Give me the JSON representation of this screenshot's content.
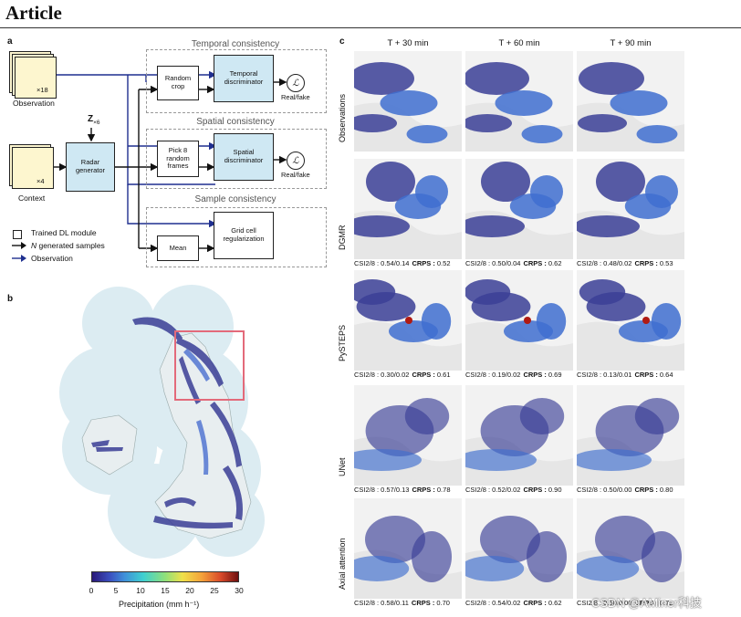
{
  "header": {
    "title": "Article"
  },
  "panel_a": {
    "letter": "a",
    "observation_label": "Observation",
    "observation_count": "×18",
    "context_label": "Context",
    "context_count": "×4",
    "z_label": "Z",
    "z_sub": "×6",
    "generator_label": "Radar generator",
    "temporal": {
      "title": "Temporal consistency",
      "crop_label": "Random crop",
      "disc_label": "Temporal discriminator",
      "loss_symbol": "ℒ",
      "output_label": "Real/fake"
    },
    "spatial": {
      "title": "Spatial consistency",
      "pick_label": "Pick 8 random frames",
      "disc_label": "Spatial discriminator",
      "loss_symbol": "ℒ",
      "output_label": "Real/fake"
    },
    "sample": {
      "title": "Sample consistency",
      "mean_label": "Mean",
      "reg_label": "Grid cell regularization"
    },
    "legend": {
      "trained": "Trained DL module",
      "generated_n": "N",
      "generated_rest": " generated samples",
      "observation": "Observation"
    }
  },
  "panel_b": {
    "letter": "b",
    "colorbar": {
      "label": "Precipitation (mm h⁻¹)",
      "ticks": [
        "0",
        "5",
        "10",
        "15",
        "20",
        "25",
        "30"
      ]
    }
  },
  "panel_c": {
    "letter": "c",
    "columns": [
      "T + 30 min",
      "T + 60 min",
      "T + 90 min"
    ],
    "rows": [
      {
        "label": "Observations",
        "metrics": []
      },
      {
        "label": "DGMR",
        "metrics": [
          {
            "csi": "CSI2/8 : 0.54/0.14",
            "crps": "0.52"
          },
          {
            "csi": "CSI2/8 : 0.50/0.04",
            "crps": "0.62"
          },
          {
            "csi": "CSI2/8 : 0.48/0.02",
            "crps": "0.53"
          }
        ]
      },
      {
        "label": "PySTEPS",
        "metrics": [
          {
            "csi": "CSI2/8 : 0.30/0.02",
            "crps": "0.61"
          },
          {
            "csi": "CSI2/8 : 0.19/0.02",
            "crps": "0.69"
          },
          {
            "csi": "CSI2/8 : 0.13/0.01",
            "crps": "0.64"
          }
        ]
      },
      {
        "label": "UNet",
        "metrics": [
          {
            "csi": "CSI2/8 : 0.57/0.13",
            "crps": "0.78"
          },
          {
            "csi": "CSI2/8 : 0.52/0.02",
            "crps": "0.90"
          },
          {
            "csi": "CSI2/8 : 0.50/0.00",
            "crps": "0.80"
          }
        ]
      },
      {
        "label": "Axial attention",
        "metrics": [
          {
            "csi": "CSI2/8 : 0.58/0.11",
            "crps": "0.70"
          },
          {
            "csi": "CSI2/8 : 0.54/0.02",
            "crps": "0.62"
          },
          {
            "csi": "CSI2/8 : 0.50/0.00",
            "crps": "0.72"
          }
        ]
      }
    ],
    "crps_label": "CRPS :"
  },
  "watermark": "CSDN @AMiner科技"
}
